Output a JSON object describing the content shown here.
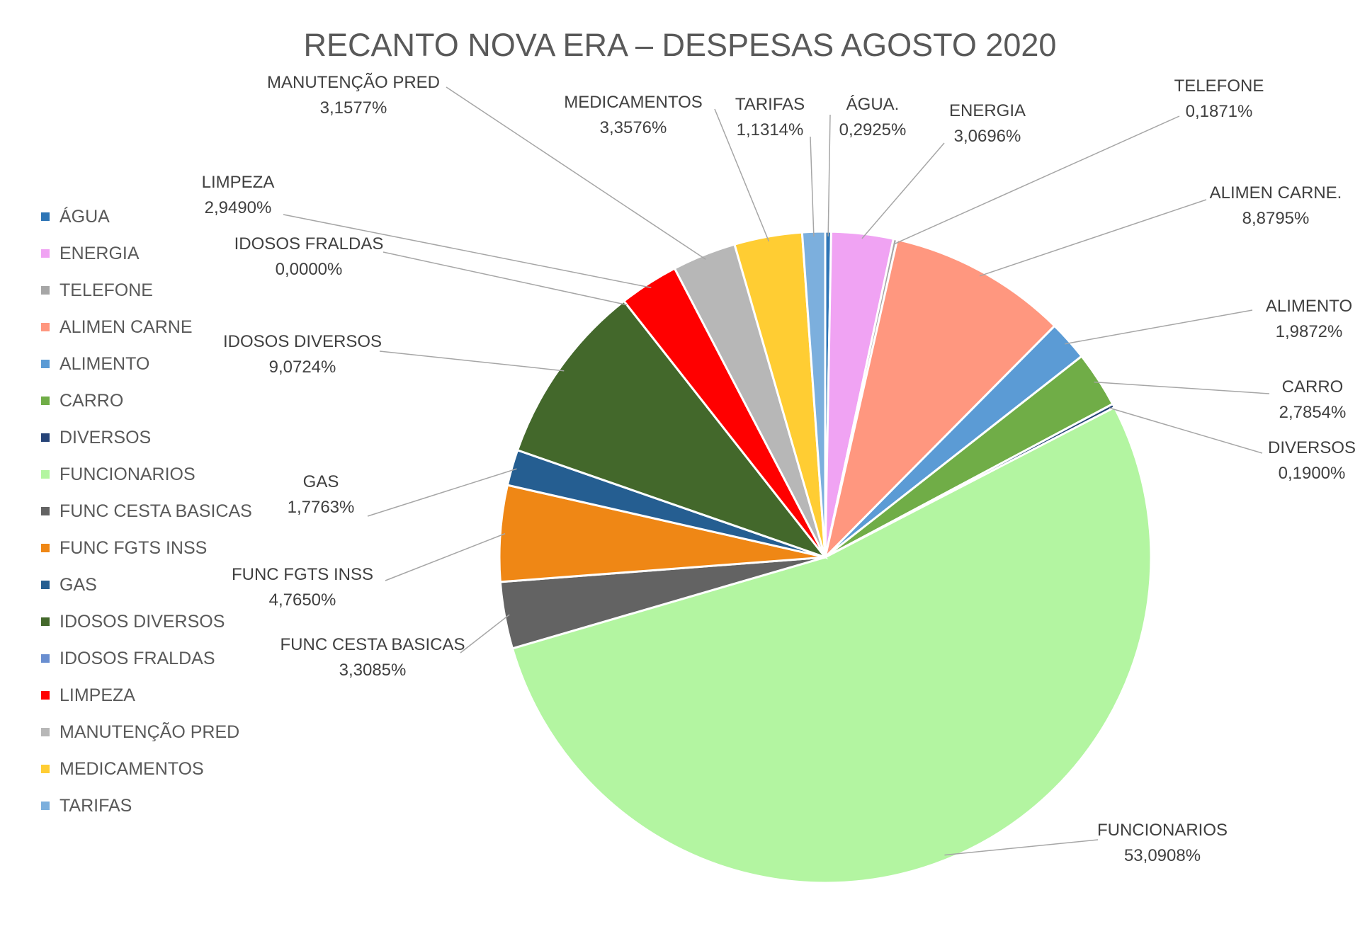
{
  "chart_data": {
    "type": "pie",
    "title": "RECANTO NOVA ERA – DESPESAS AGOSTO 2020",
    "legend_position": "left",
    "slices": [
      {
        "name": "ÁGUA",
        "label": "ÁGUA.",
        "value": 0.2925,
        "value_label": "0,2925%",
        "color": "#2E75B6"
      },
      {
        "name": "ENERGIA",
        "label": "ENERGIA",
        "value": 3.0696,
        "value_label": "3,0696%",
        "color": "#F0A3F3"
      },
      {
        "name": "TELEFONE",
        "label": "TELEFONE",
        "value": 0.1871,
        "value_label": "0,1871%",
        "color": "#A6A6A6"
      },
      {
        "name": "ALIMEN CARNE",
        "label": "ALIMEN CARNE.",
        "value": 8.8795,
        "value_label": "8,8795%",
        "color": "#FF977F"
      },
      {
        "name": "ALIMENTO",
        "label": "ALIMENTO",
        "value": 1.9872,
        "value_label": "1,9872%",
        "color": "#5B9BD5"
      },
      {
        "name": "CARRO",
        "label": "CARRO",
        "value": 2.7854,
        "value_label": "2,7854%",
        "color": "#70AD47"
      },
      {
        "name": "DIVERSOS",
        "label": "DIVERSOS",
        "value": 0.19,
        "value_label": "0,1900%",
        "color": "#264478"
      },
      {
        "name": "FUNCIONARIOS",
        "label": "FUNCIONARIOS",
        "value": 53.0908,
        "value_label": "53,0908%",
        "color": "#B3F5A1"
      },
      {
        "name": "FUNC CESTA BASICAS",
        "label": "FUNC CESTA BASICAS",
        "value": 3.3085,
        "value_label": "3,3085%",
        "color": "#636363"
      },
      {
        "name": "FUNC FGTS INSS",
        "label": "FUNC FGTS INSS",
        "value": 4.765,
        "value_label": "4,7650%",
        "color": "#EF8715"
      },
      {
        "name": "GAS",
        "label": "GAS",
        "value": 1.7763,
        "value_label": "1,7763%",
        "color": "#255E91"
      },
      {
        "name": "IDOSOS DIVERSOS",
        "label": "IDOSOS DIVERSOS",
        "value": 9.0724,
        "value_label": "9,0724%",
        "color": "#43682B"
      },
      {
        "name": "IDOSOS FRALDAS",
        "label": "IDOSOS FRALDAS",
        "value": 0.0,
        "value_label": "0,0000%",
        "color": "#698ED0"
      },
      {
        "name": "LIMPEZA",
        "label": "LIMPEZA",
        "value": 2.949,
        "value_label": "2,9490%",
        "color": "#FF0000"
      },
      {
        "name": "MANUTENÇÃO PRED",
        "label": "MANUTENÇÃO PRED",
        "value": 3.1577,
        "value_label": "3,1577%",
        "color": "#B7B7B7"
      },
      {
        "name": "MEDICAMENTOS",
        "label": "MEDICAMENTOS",
        "value": 3.3576,
        "value_label": "3,3576%",
        "color": "#FFCD33"
      },
      {
        "name": "TARIFAS",
        "label": "TARIFAS",
        "value": 1.1314,
        "value_label": "1,1314%",
        "color": "#7CAFDD"
      }
    ]
  }
}
